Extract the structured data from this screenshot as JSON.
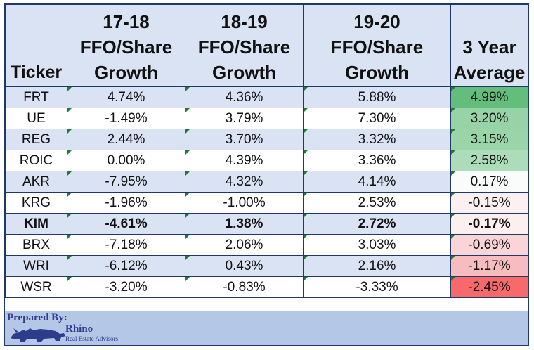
{
  "table": {
    "headers": [
      "Ticker",
      "17-18\nFFO/Share\nGrowth",
      "18-19\nFFO/Share\nGrowth",
      "19-20\nFFO/Share\nGrowth",
      "3 Year\nAverage"
    ],
    "rows": [
      {
        "ticker": "FRT",
        "y1718": "4.74%",
        "y1819": "4.36%",
        "y1920": "5.88%",
        "avg": "4.99%",
        "avg_color": "#63be7b",
        "bold": false
      },
      {
        "ticker": "UE",
        "y1718": "-1.49%",
        "y1819": "3.79%",
        "y1920": "7.30%",
        "avg": "3.20%",
        "avg_color": "#98d3a8",
        "bold": false
      },
      {
        "ticker": "REG",
        "y1718": "2.44%",
        "y1819": "3.70%",
        "y1920": "3.32%",
        "avg": "3.15%",
        "avg_color": "#9ad4a9",
        "bold": false
      },
      {
        "ticker": "ROIC",
        "y1718": "0.00%",
        "y1819": "4.39%",
        "y1920": "3.36%",
        "avg": "2.58%",
        "avg_color": "#addcba",
        "bold": false
      },
      {
        "ticker": "AKR",
        "y1718": "-7.95%",
        "y1819": "4.32%",
        "y1920": "4.14%",
        "avg": "0.17%",
        "avg_color": "#f9fcfa",
        "bold": false
      },
      {
        "ticker": "KRG",
        "y1718": "-1.96%",
        "y1819": "-1.00%",
        "y1920": "2.53%",
        "avg": "-0.15%",
        "avg_color": "#fcf0f1",
        "bold": false
      },
      {
        "ticker": "KIM",
        "y1718": "-4.61%",
        "y1819": "1.38%",
        "y1920": "2.72%",
        "avg": "-0.17%",
        "avg_color": "#fcefef",
        "bold": true
      },
      {
        "ticker": "BRX",
        "y1718": "-7.18%",
        "y1819": "2.06%",
        "y1920": "3.03%",
        "avg": "-0.69%",
        "avg_color": "#f9d5d7",
        "bold": false
      },
      {
        "ticker": "WRI",
        "y1718": "-6.12%",
        "y1819": "0.43%",
        "y1920": "2.16%",
        "avg": "-1.17%",
        "avg_color": "#f7bcbf",
        "bold": false
      },
      {
        "ticker": "WSR",
        "y1718": "-3.20%",
        "y1819": "-0.83%",
        "y1920": "-3.33%",
        "avg": "-2.45%",
        "avg_color": "#f8696b",
        "bold": false
      }
    ]
  },
  "footer": {
    "prepared_by": "Prepared By:",
    "brand_name": "Rhino",
    "brand_sub": "Real Estate Advisors"
  },
  "colors": {
    "header_bg": "#dae3f3",
    "row_alt_bg": "#dae3f3",
    "footer_bg": "#b4c7e7",
    "border": "#1f3864",
    "brand": "#2e3c8c",
    "cell_marker": "#1e7b30"
  }
}
